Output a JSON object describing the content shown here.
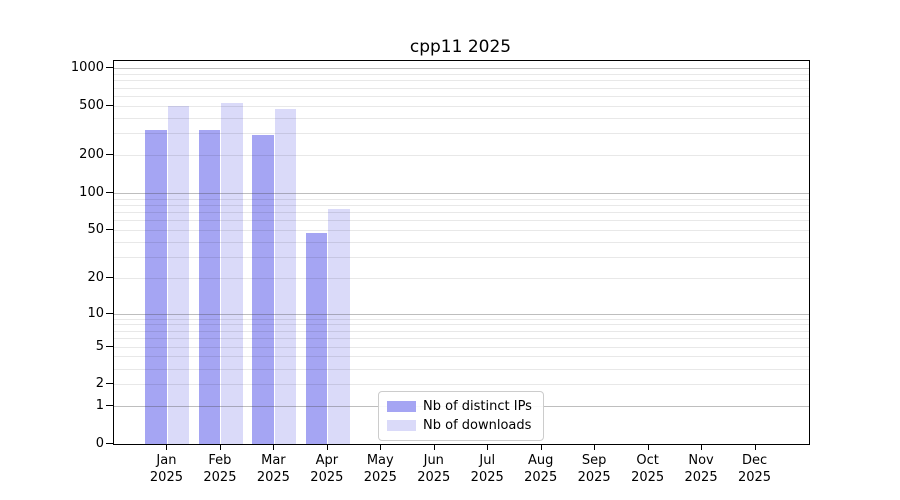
{
  "chart_data": {
    "type": "bar",
    "title": "cpp11 2025",
    "scale": "log1p",
    "ylim": [
      0,
      1140
    ],
    "grid": "horizontal",
    "legend_position": "bottom-center-inside",
    "categories": [
      "Jan",
      "Feb",
      "Mar",
      "Apr",
      "May",
      "Jun",
      "Jul",
      "Aug",
      "Sep",
      "Oct",
      "Nov",
      "Dec"
    ],
    "category_year": "2025",
    "y_tick_labels": [
      "1000",
      "500",
      "200",
      "100",
      "50",
      "20",
      "10",
      "5",
      "2",
      "1",
      "0"
    ],
    "y_tick_values": [
      1000,
      500,
      200,
      100,
      50,
      20,
      10,
      5,
      2,
      1,
      0
    ],
    "grid_major_values": [
      1000,
      100,
      10,
      1
    ],
    "grid_minor_values": [
      900,
      800,
      700,
      600,
      500,
      400,
      300,
      200,
      90,
      80,
      70,
      60,
      50,
      40,
      30,
      20,
      9,
      8,
      7,
      6,
      5,
      4,
      3,
      2
    ],
    "series": [
      {
        "name": "Nb of distinct IPs",
        "color": "#a5a5f3",
        "values": [
          320,
          322,
          290,
          47,
          null,
          null,
          null,
          null,
          null,
          null,
          null,
          null
        ]
      },
      {
        "name": "Nb of downloads",
        "color": "#dadaf9",
        "values": [
          495,
          530,
          470,
          74,
          null,
          null,
          null,
          null,
          null,
          null,
          null,
          null
        ]
      }
    ]
  }
}
